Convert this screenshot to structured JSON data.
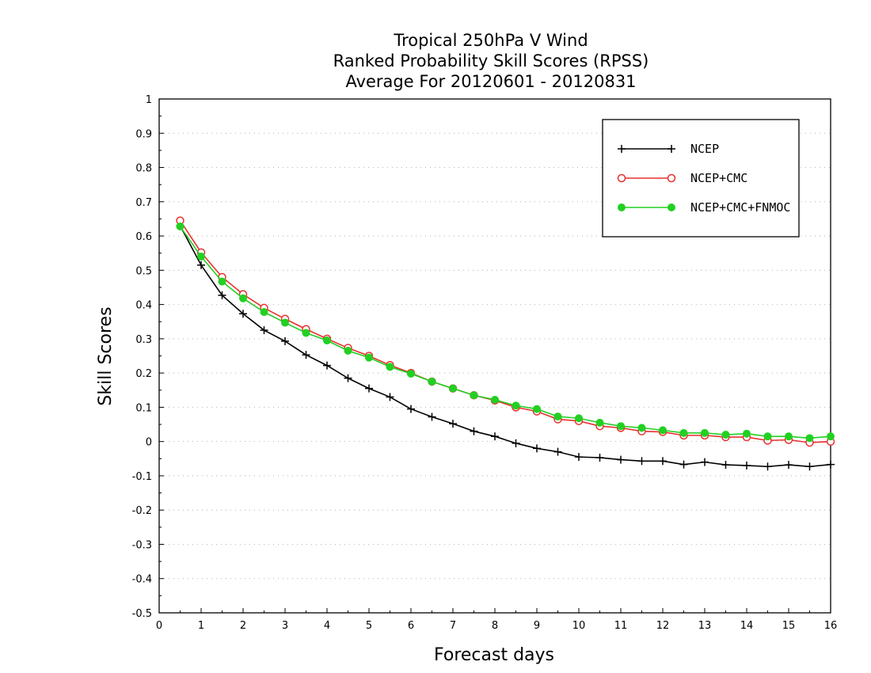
{
  "chart_data": {
    "type": "line",
    "title_lines": [
      "Tropical 250hPa V Wind",
      "Ranked Probability Skill Scores (RPSS)",
      "Average For 20120601 - 20120831"
    ],
    "xlabel": "Forecast days",
    "ylabel": "Skill Scores",
    "xlim": [
      0,
      16
    ],
    "ylim": [
      -0.5,
      1
    ],
    "xticks": [
      "0",
      "1",
      "2",
      "3",
      "4",
      "5",
      "6",
      "7",
      "8",
      "9",
      "10",
      "11",
      "12",
      "13",
      "14",
      "15",
      "16"
    ],
    "yticks": [
      "1",
      "0.9",
      "0.8",
      "0.7",
      "0.6",
      "0.5",
      "0.4",
      "0.3",
      "0.2",
      "0.1",
      "0",
      "-0.1",
      "-0.2",
      "-0.3",
      "-0.4",
      "-0.5"
    ],
    "grid": "horizontal-dotted",
    "legend_position": "top-right",
    "x": [
      0.5,
      1,
      1.5,
      2,
      2.5,
      3,
      3.5,
      4,
      4.5,
      5,
      5.5,
      6,
      6.5,
      7,
      7.5,
      8,
      8.5,
      9,
      9.5,
      10,
      10.5,
      11,
      11.5,
      12,
      12.5,
      13,
      13.5,
      14,
      14.5,
      15,
      15.5,
      16
    ],
    "series": [
      {
        "name": "NCEP",
        "color": "#000000",
        "marker": "plus",
        "values": [
          0.63,
          0.515,
          0.427,
          0.373,
          0.325,
          0.293,
          0.253,
          0.222,
          0.185,
          0.155,
          0.13,
          0.095,
          0.072,
          0.052,
          0.03,
          0.015,
          -0.005,
          -0.02,
          -0.03,
          -0.045,
          -0.047,
          -0.053,
          -0.057,
          -0.057,
          -0.067,
          -0.06,
          -0.068,
          -0.07,
          -0.073,
          -0.068,
          -0.073,
          -0.067
        ]
      },
      {
        "name": "NCEP+CMC",
        "color": "#e83030",
        "marker": "open-circle",
        "values": [
          0.645,
          0.552,
          0.48,
          0.43,
          0.39,
          0.358,
          0.328,
          0.3,
          0.273,
          0.25,
          0.223,
          0.2,
          0.175,
          0.155,
          0.135,
          0.12,
          0.1,
          0.088,
          0.065,
          0.06,
          0.045,
          0.04,
          0.03,
          0.028,
          0.018,
          0.018,
          0.013,
          0.013,
          0.003,
          0.005,
          -0.003,
          0.0
        ]
      },
      {
        "name": "NCEP+CMC+FNMOC",
        "color": "#22d022",
        "marker": "filled-circle",
        "values": [
          0.628,
          0.54,
          0.467,
          0.418,
          0.378,
          0.347,
          0.317,
          0.295,
          0.265,
          0.245,
          0.218,
          0.198,
          0.175,
          0.155,
          0.135,
          0.122,
          0.105,
          0.095,
          0.073,
          0.068,
          0.055,
          0.045,
          0.04,
          0.033,
          0.025,
          0.025,
          0.02,
          0.023,
          0.015,
          0.015,
          0.01,
          0.015
        ]
      }
    ]
  }
}
